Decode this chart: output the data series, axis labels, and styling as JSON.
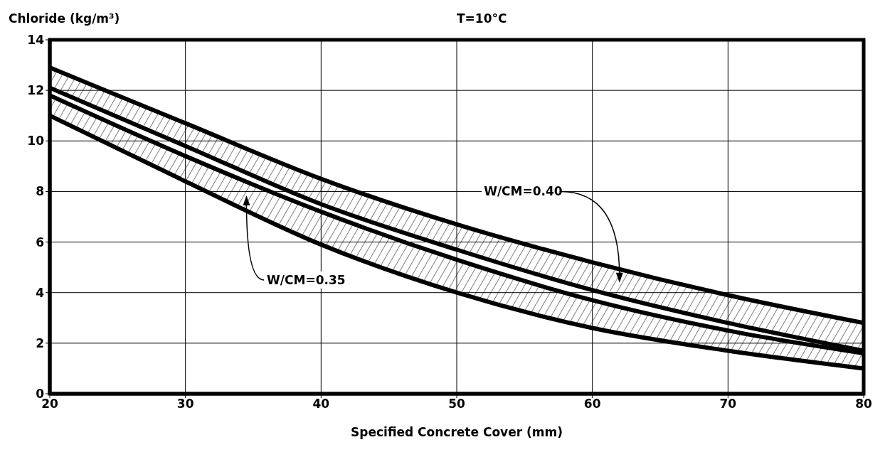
{
  "chart_data": {
    "type": "line",
    "title": "T=10°C",
    "xlabel": "Specified Concrete Cover (mm)",
    "ylabel": "Chloride (kg/m³)",
    "x": [
      20,
      30,
      40,
      50,
      60,
      70,
      80
    ],
    "series": [
      {
        "color": "#000000",
        "values": [
          12.9,
          10.7,
          8.5,
          6.7,
          5.2,
          3.9,
          2.8
        ],
        "lower": [
          12.1,
          9.8,
          7.5,
          5.7,
          4.1,
          2.8,
          1.7
        ],
        "upper": [
          12.9,
          10.7,
          8.5,
          6.7,
          5.2,
          3.9,
          2.8
        ]
      },
      {
        "color": "#000000",
        "values": [
          12.1,
          9.8,
          7.5,
          5.7,
          4.1,
          2.8,
          1.7
        ]
      },
      {
        "color": "#000000",
        "values": [
          11.8,
          9.4,
          7.2,
          5.3,
          3.7,
          2.5,
          1.6
        ],
        "lower": [
          11.0,
          8.4,
          5.9,
          4.0,
          2.6,
          1.7,
          1.0
        ],
        "upper": [
          11.8,
          9.4,
          7.2,
          5.3,
          3.7,
          2.5,
          1.6
        ]
      },
      {
        "color": "#000000",
        "values": [
          11.0,
          8.4,
          5.9,
          4.0,
          2.6,
          1.7,
          1.0
        ]
      }
    ],
    "annotations": [
      "W/CM=0.40",
      "W/CM=0.35"
    ],
    "xlim": [
      20,
      80
    ],
    "xticks": [
      20,
      30,
      40,
      50,
      60,
      70,
      80
    ],
    "ylim": [
      0,
      14
    ],
    "yticks": [
      0,
      2,
      4,
      6,
      8,
      10,
      12,
      14
    ],
    "grid": true,
    "line_style": "solid"
  }
}
